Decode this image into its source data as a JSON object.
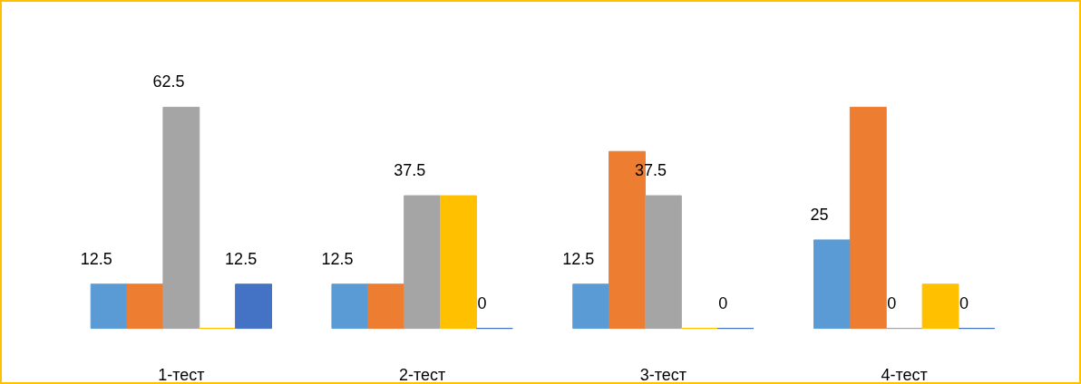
{
  "chart_data": {
    "type": "bar",
    "categories": [
      "1-тест",
      "2-тест",
      "3-тест",
      "4-тест"
    ],
    "series": [
      {
        "color": "#5b9bd5",
        "values": [
          12.5,
          12.5,
          12.5,
          25
        ],
        "value_labels": [
          "12.5",
          "12.5",
          "12.5",
          "25"
        ]
      },
      {
        "color": "#ed7d31",
        "values": [
          12.5,
          12.5,
          50,
          62.5
        ],
        "value_labels": [
          null,
          null,
          null,
          null
        ]
      },
      {
        "color": "#a5a5a5",
        "values": [
          62.5,
          37.5,
          37.5,
          0
        ],
        "value_labels": [
          "62.5",
          "37.5",
          "37.5",
          "0"
        ]
      },
      {
        "color": "#ffc000",
        "values": [
          0,
          37.5,
          0,
          12.5
        ],
        "value_labels": [
          null,
          null,
          null,
          null
        ]
      },
      {
        "color": "#4472c4",
        "values": [
          12.5,
          0,
          0,
          0
        ],
        "value_labels": [
          "12.5",
          "0",
          "0",
          "0"
        ]
      }
    ]
  }
}
